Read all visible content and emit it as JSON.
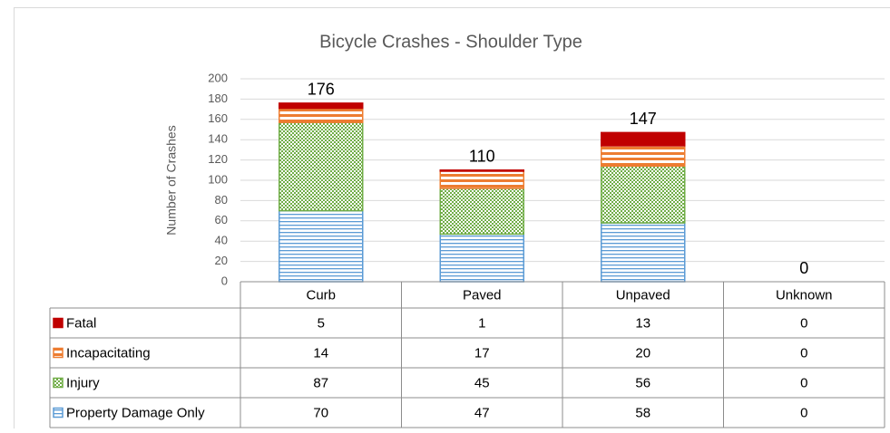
{
  "chart_data": {
    "type": "bar",
    "stacked": true,
    "title": "Bicycle Crashes - Shoulder Type",
    "y_label": "Number of Crashes",
    "categories": [
      "Curb",
      "Paved",
      "Unpaved",
      "Unknown"
    ],
    "series": [
      {
        "name": "Fatal",
        "color": "#c00000",
        "pattern": "solid",
        "values": [
          5,
          1,
          13,
          0
        ]
      },
      {
        "name": "Incapacitating",
        "color": "#ed7d31",
        "pattern": "wide-stripes",
        "values": [
          14,
          17,
          20,
          0
        ]
      },
      {
        "name": "Injury",
        "color": "#70ad47",
        "pattern": "checker",
        "values": [
          87,
          45,
          56,
          0
        ]
      },
      {
        "name": "Property Damage Only",
        "color": "#5b9bd5",
        "pattern": "stripes",
        "values": [
          70,
          47,
          58,
          0
        ]
      }
    ],
    "totals": [
      176,
      110,
      147,
      0
    ],
    "ylim": [
      0,
      200
    ],
    "yticks": [
      0,
      20,
      40,
      60,
      80,
      100,
      120,
      140,
      160,
      180,
      200
    ],
    "grid": true
  }
}
